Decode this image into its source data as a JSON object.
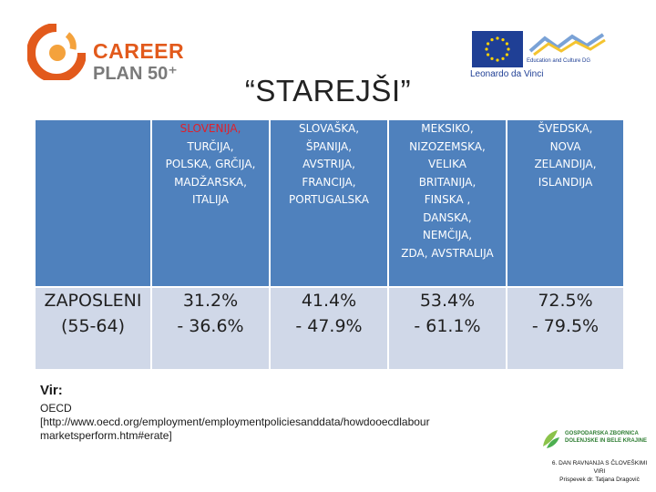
{
  "logo": {
    "line1": "CAREER",
    "line2": "PLAN 50⁺"
  },
  "eu": {
    "program": "Leonardo da Vinci",
    "dg": "Education and Culture DG"
  },
  "title": "“STAREJŠI”",
  "table": {
    "headers": [
      {
        "lines": [
          "SLOVENIJA,",
          "TURČIJA,",
          "POLSKA, GRČIJA,",
          "MADŽARSKA,",
          "ITALIJA"
        ],
        "first_line_red": true
      },
      {
        "lines": [
          "SLOVAŠKA,",
          "ŠPANIJA,",
          "AVSTRIJA,",
          "FRANCIJA,",
          "PORTUGALSKA"
        ],
        "first_line_red": false
      },
      {
        "lines": [
          "MEKSIKO,",
          "NIZOZEMSKA,",
          "VELIKA",
          "BRITANIJA,",
          "FINSKA ,",
          "DANSKA,",
          "NEMČIJA,",
          "ZDA, AVSTRALIJA"
        ],
        "first_line_red": false
      },
      {
        "lines": [
          "ŠVEDSKA,",
          "NOVA",
          "ZELANDIJA,",
          "ISLANDIJA"
        ],
        "first_line_red": false
      }
    ],
    "row_label": [
      "ZAPOSLENI",
      "(55-64)"
    ],
    "values": [
      [
        "31.2%",
        "- 36.6%"
      ],
      [
        "41.4%",
        "- 47.9%"
      ],
      [
        "53.4%",
        "- 61.1%"
      ],
      [
        "72.5%",
        "- 79.5%"
      ]
    ]
  },
  "source": {
    "label": "Vir:",
    "lines": [
      "OECD",
      "[http://www.oecd.org/employment/employmentpoliciesanddata/howdooecdlabour",
      "marketsperform.htm#erate]"
    ]
  },
  "gz_logo": {
    "line1": "GOSPODARSKA ZBORNICA",
    "line2": "DOLENJSKE IN BELE KRAJINE"
  },
  "footer": {
    "lines": [
      "6. DAN RAVNANJA S ČLOVEŠKIMI",
      "VIRI",
      "Prispevek dr. Tatjana Dragovič"
    ]
  },
  "colors": {
    "header_bg": "#4f81bd",
    "data_bg": "#d0d8e8",
    "accent_red": "#e0202a",
    "brand_orange": "#e25a1c"
  }
}
